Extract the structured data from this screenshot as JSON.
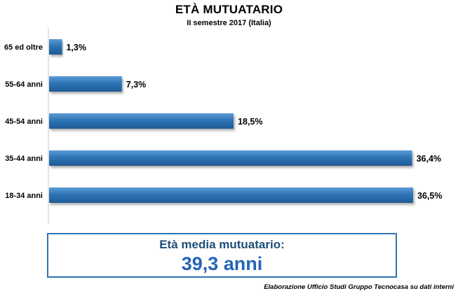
{
  "chart_data": {
    "type": "bar",
    "orientation": "horizontal",
    "title": "ETÀ MUTUATARIO",
    "subtitle": "II semestre 2017 (Italia)",
    "categories": [
      "65 ed oltre",
      "55-64 anni",
      "45-54 anni",
      "35-44 anni",
      "18-34 anni"
    ],
    "values": [
      1.3,
      7.3,
      18.5,
      36.4,
      36.5
    ],
    "value_labels": [
      "1,3%",
      "7,3%",
      "18,5%",
      "36,4%",
      "36,5%"
    ],
    "xlim": [
      0,
      36.5
    ],
    "grid": false,
    "bar_color": "#2e75b6"
  },
  "summary": {
    "label": "Età media mutuatario:",
    "value": "39,3 anni"
  },
  "source_note": "Elaborazione Ufficio Studi Gruppo Tecnocasa su dati interni"
}
